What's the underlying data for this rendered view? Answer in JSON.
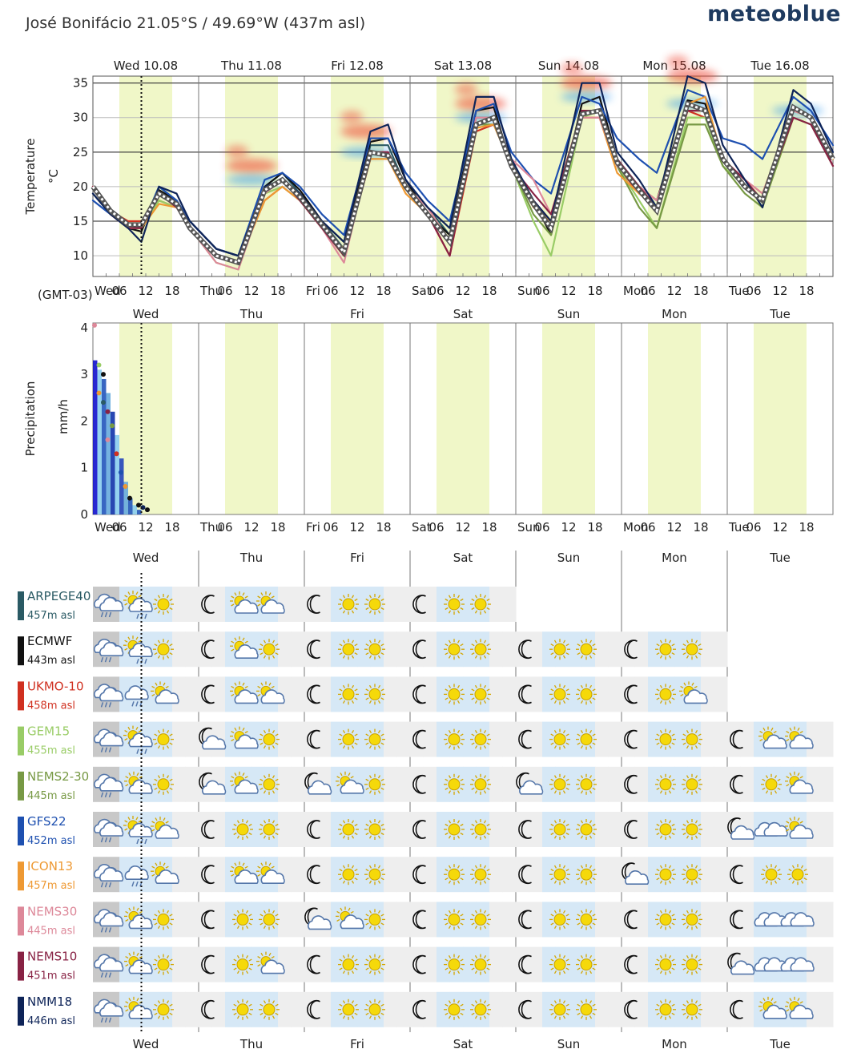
{
  "header": {
    "title": "José Bonifácio  21.05°S / 49.69°W (437m asl)",
    "brand": "meteoblue"
  },
  "timezone_label": "(GMT-03)",
  "days": [
    {
      "short": "Wed",
      "long": "Wed 10.08"
    },
    {
      "short": "Thu",
      "long": "Thu 11.08"
    },
    {
      "short": "Fri",
      "long": "Fri 12.08"
    },
    {
      "short": "Sat",
      "long": "Sat 13.08"
    },
    {
      "short": "Sun",
      "long": "Sun 14.08"
    },
    {
      "short": "Mon",
      "long": "Mon 15.08"
    },
    {
      "short": "Tue",
      "long": "Tue 16.08"
    }
  ],
  "hour_ticks": [
    "06",
    "12",
    "18"
  ],
  "colors": {
    "daytime_band": "#f0f7c8",
    "grid": "#bbbbbb",
    "hot_blob": "#ee4433",
    "cold_blob": "#3399ee",
    "icon_sun": "#f5d90a",
    "icon_cloud": "#5577aa",
    "row_day": "#d6e8f6",
    "row_night": "#eeeeee"
  },
  "chart_data": [
    {
      "type": "line",
      "title": "",
      "ylabel": "Temperature",
      "yunit": "°C",
      "yticks": [
        10,
        15,
        20,
        25,
        30,
        35
      ],
      "ylim": [
        7,
        36
      ],
      "xlim_hours": [
        0,
        168
      ],
      "current_time_hour": 11,
      "ensemble_mean": {
        "hours": [
          0,
          4,
          8,
          11,
          15,
          19,
          22,
          28,
          33,
          39,
          43,
          47,
          52,
          57,
          63,
          67,
          71,
          76,
          81,
          87,
          91,
          95,
          100,
          104,
          111,
          115,
          119,
          124,
          128,
          135,
          139,
          143,
          148,
          152,
          159,
          163,
          168
        ],
        "values": [
          20,
          16.5,
          14.5,
          14.5,
          19,
          17.5,
          14,
          10,
          9,
          19.5,
          21,
          18.5,
          14.5,
          10.5,
          25,
          24.5,
          20,
          16,
          12,
          29,
          30,
          23,
          17.5,
          14,
          30.5,
          31,
          23.5,
          19.5,
          16.5,
          32,
          31,
          24,
          20,
          18,
          31.5,
          30,
          24
        ]
      },
      "series": [
        {
          "name": "ARPEGE40",
          "color": "#2a5a64",
          "values": [
            20,
            16,
            14.5,
            14,
            20,
            18,
            15,
            11,
            10,
            20,
            22,
            19,
            15,
            11,
            26,
            26,
            20,
            17,
            13,
            30,
            30,
            24,
            18,
            15,
            31,
            31,
            24
          ]
        },
        {
          "name": "ECMWF",
          "color": "#111111",
          "values": [
            19,
            16,
            14,
            13.5,
            19.5,
            18,
            15,
            11,
            10,
            20,
            22,
            19.5,
            15,
            12,
            26.5,
            27,
            21,
            16,
            13,
            31,
            31.5,
            23,
            18,
            13,
            32,
            33,
            24,
            20,
            18,
            32.5,
            32,
            24,
            20,
            18
          ]
        },
        {
          "name": "UKMO-10",
          "color": "#d03020",
          "values": [
            20,
            16.5,
            15,
            15,
            18,
            17,
            14,
            10,
            9,
            18,
            20,
            18,
            14,
            10,
            24,
            24,
            20,
            16,
            10,
            28,
            29,
            23,
            18,
            15,
            30,
            30,
            23,
            19,
            17,
            31,
            30,
            24,
            21
          ]
        },
        {
          "name": "GEM15",
          "color": "#99cc66",
          "values": [
            20,
            16,
            14,
            14,
            18,
            17,
            14,
            9,
            8,
            19,
            20,
            18,
            14,
            11,
            24,
            24,
            20,
            17,
            12,
            29,
            30,
            23,
            15,
            10,
            30,
            31,
            23,
            18,
            14,
            30,
            30,
            23,
            20,
            18,
            30,
            29,
            24
          ]
        },
        {
          "name": "NEMS2-30",
          "color": "#779944",
          "values": [
            20,
            16,
            14,
            14,
            19,
            17.5,
            14,
            10,
            9,
            19,
            21,
            18,
            14,
            10,
            25,
            25,
            20,
            16,
            12,
            29,
            29,
            23,
            16,
            13,
            30,
            30,
            23,
            17,
            14,
            29,
            29,
            23,
            19,
            17,
            30,
            29,
            23
          ]
        },
        {
          "name": "GFS22",
          "color": "#1e50b0",
          "values": [
            18,
            16,
            14,
            14,
            20,
            18,
            15,
            11,
            10,
            21,
            22,
            20,
            16,
            13,
            27,
            27,
            22,
            18,
            15,
            31,
            32,
            25,
            21,
            19,
            33,
            32,
            27,
            24,
            22,
            34,
            33,
            27,
            26,
            24,
            33,
            31,
            26
          ]
        },
        {
          "name": "ICON13",
          "color": "#ee9933",
          "values": [
            20,
            16,
            14,
            14,
            17.5,
            17,
            14,
            10,
            9,
            18,
            20,
            18,
            14,
            11,
            24,
            24,
            19,
            16,
            12,
            28.5,
            29,
            23,
            17,
            15,
            30,
            30,
            22,
            19,
            17,
            32,
            33,
            24,
            21,
            19,
            31,
            30,
            24
          ]
        },
        {
          "name": "NEMS30",
          "color": "#dd8899",
          "values": [
            20,
            16,
            14,
            14,
            19,
            17,
            14,
            9,
            8,
            19,
            21,
            18,
            14,
            9,
            25,
            25,
            20,
            17,
            12,
            30,
            30,
            24,
            21,
            16,
            30,
            30,
            23,
            20,
            18,
            31,
            31,
            24,
            21,
            19,
            31,
            30,
            23
          ]
        },
        {
          "name": "NEMS10",
          "color": "#882244",
          "values": [
            20,
            16,
            14,
            14,
            19,
            17,
            14,
            10,
            9,
            19.5,
            21,
            18,
            14,
            10,
            25,
            25,
            20,
            16,
            10,
            29,
            30,
            23,
            19,
            16,
            31,
            31,
            24,
            20,
            17,
            31,
            31,
            24,
            21,
            18,
            30,
            29,
            23
          ]
        },
        {
          "name": "NMM18",
          "color": "#0e2458",
          "values": [
            19,
            16,
            14,
            12,
            20,
            19,
            15,
            11,
            10,
            20,
            21,
            19,
            15,
            12,
            28,
            29,
            21,
            17,
            14,
            33,
            33,
            24,
            18,
            15,
            35,
            35,
            25,
            21,
            17,
            36,
            35,
            26,
            21,
            17,
            34,
            32,
            25
          ]
        }
      ]
    },
    {
      "type": "bar",
      "title": "",
      "ylabel": "Precipitation",
      "yunit": "mm/h",
      "yticks": [
        0,
        1,
        2,
        3,
        4
      ],
      "ylim": [
        0,
        4.1
      ],
      "xlim_hours": [
        0,
        168
      ],
      "bars": [
        {
          "hour": 0,
          "value": 3.3,
          "color": "#1111cc"
        },
        {
          "hour": 1,
          "value": 3.1,
          "color": "#88ccee"
        },
        {
          "hour": 2,
          "value": 2.9,
          "color": "#2255bb"
        },
        {
          "hour": 3,
          "value": 2.6,
          "color": "#66aadd"
        },
        {
          "hour": 4,
          "value": 2.2,
          "color": "#1133aa"
        },
        {
          "hour": 5,
          "value": 1.7,
          "color": "#88ccee"
        },
        {
          "hour": 6,
          "value": 1.2,
          "color": "#2244bb"
        },
        {
          "hour": 7,
          "value": 0.7,
          "color": "#66aadd"
        },
        {
          "hour": 8,
          "value": 0.35,
          "color": "#2255bb"
        },
        {
          "hour": 9,
          "value": 0.2,
          "color": "#88ccee"
        },
        {
          "hour": 10,
          "value": 0.1,
          "color": "#2255bb"
        }
      ],
      "points": [
        {
          "hour": 0,
          "value": 4.05,
          "color": "#dd8899"
        },
        {
          "hour": 1,
          "value": 3.2,
          "color": "#99cc66"
        },
        {
          "hour": 2,
          "value": 3.0,
          "color": "#111111"
        },
        {
          "hour": 1,
          "value": 2.6,
          "color": "#ee9933"
        },
        {
          "hour": 2,
          "value": 2.4,
          "color": "#2a5a64"
        },
        {
          "hour": 3,
          "value": 2.2,
          "color": "#882244"
        },
        {
          "hour": 3,
          "value": 1.6,
          "color": "#dd8899"
        },
        {
          "hour": 4,
          "value": 1.9,
          "color": "#779944"
        },
        {
          "hour": 5,
          "value": 1.3,
          "color": "#d03020"
        },
        {
          "hour": 6,
          "value": 0.9,
          "color": "#1e50b0"
        },
        {
          "hour": 7,
          "value": 0.6,
          "color": "#ee9933"
        },
        {
          "hour": 8,
          "value": 0.35,
          "color": "#111111"
        },
        {
          "hour": 10,
          "value": 0.2,
          "color": "#111111"
        },
        {
          "hour": 11,
          "value": 0.15,
          "color": "#0e2458"
        },
        {
          "hour": 12,
          "value": 0.1,
          "color": "#111111"
        }
      ]
    }
  ],
  "models": [
    {
      "name": "ARPEGE40",
      "elev": "457m asl",
      "color": "#2a5a64",
      "end_hour": 96,
      "icons": [
        "storm",
        "suncloudrain",
        "sun",
        "moon",
        "suncloud",
        "suncloud",
        "moon",
        "sun",
        "sun",
        "moon",
        "sun",
        "sun"
      ]
    },
    {
      "name": "ECMWF",
      "elev": "443m asl",
      "color": "#111111",
      "end_hour": 144,
      "icons": [
        "storm",
        "suncloudrain",
        "sun",
        "moon",
        "suncloud",
        "sun",
        "moon",
        "sun",
        "sun",
        "moon",
        "sun",
        "sun",
        "moon",
        "sun",
        "sun",
        "moon",
        "sun",
        "sun"
      ]
    },
    {
      "name": "UKMO-10",
      "elev": "458m asl",
      "color": "#d03020",
      "end_hour": 144,
      "icons": [
        "storm",
        "cloudrain",
        "suncloud",
        "moon",
        "suncloud",
        "suncloud",
        "moon",
        "sun",
        "sun",
        "moon",
        "sun",
        "sun",
        "moon",
        "sun",
        "sun",
        "moon",
        "sun",
        "suncloud"
      ]
    },
    {
      "name": "GEM15",
      "elev": "455m asl",
      "color": "#99cc66",
      "end_hour": 168,
      "icons": [
        "storm",
        "suncloudrain",
        "sun",
        "mooncloud",
        "suncloud",
        "sun",
        "moon",
        "sun",
        "sun",
        "moon",
        "sun",
        "sun",
        "moon",
        "sun",
        "sun",
        "moon",
        "sun",
        "sun",
        "moon",
        "suncloud",
        "suncloud"
      ]
    },
    {
      "name": "NEMS2-30",
      "elev": "445m asl",
      "color": "#779944",
      "end_hour": 168,
      "icons": [
        "storm",
        "suncloud",
        "sun",
        "mooncloud",
        "suncloud",
        "sun",
        "mooncloud",
        "suncloud",
        "sun",
        "moon",
        "sun",
        "sun",
        "mooncloud",
        "sun",
        "sun",
        "moon",
        "sun",
        "sun",
        "moon",
        "sun",
        "suncloud"
      ]
    },
    {
      "name": "GFS22",
      "elev": "452m asl",
      "color": "#1e50b0",
      "end_hour": 168,
      "icons": [
        "storm",
        "suncloudrain",
        "suncloud",
        "moon",
        "sun",
        "sun",
        "moon",
        "sun",
        "sun",
        "moon",
        "sun",
        "sun",
        "moon",
        "sun",
        "sun",
        "moon",
        "sun",
        "sun",
        "mooncloud",
        "cloud",
        "suncloud"
      ]
    },
    {
      "name": "ICON13",
      "elev": "457m asl",
      "color": "#ee9933",
      "end_hour": 168,
      "icons": [
        "storm",
        "cloudrain",
        "suncloud",
        "moon",
        "suncloud",
        "suncloud",
        "moon",
        "sun",
        "sun",
        "moon",
        "sun",
        "sun",
        "moon",
        "sun",
        "sun",
        "mooncloud",
        "sun",
        "sun",
        "moon",
        "sun",
        "sun"
      ]
    },
    {
      "name": "NEMS30",
      "elev": "445m asl",
      "color": "#dd8899",
      "end_hour": 168,
      "icons": [
        "storm",
        "suncloud",
        "sun",
        "moon",
        "sun",
        "sun",
        "mooncloud",
        "suncloud",
        "sun",
        "moon",
        "sun",
        "sun",
        "moon",
        "sun",
        "sun",
        "moon",
        "sun",
        "sun",
        "moon",
        "cloud",
        "cloud"
      ]
    },
    {
      "name": "NEMS10",
      "elev": "451m asl",
      "color": "#882244",
      "end_hour": 168,
      "icons": [
        "storm",
        "suncloud",
        "sun",
        "moon",
        "sun",
        "suncloud",
        "moon",
        "sun",
        "sun",
        "moon",
        "sun",
        "sun",
        "moon",
        "sun",
        "sun",
        "moon",
        "sun",
        "sun",
        "mooncloud",
        "cloud",
        "cloud"
      ]
    },
    {
      "name": "NMM18",
      "elev": "446m asl",
      "color": "#0e2458",
      "end_hour": 168,
      "icons": [
        "storm",
        "suncloud",
        "sun",
        "moon",
        "sun",
        "sun",
        "moon",
        "sun",
        "sun",
        "moon",
        "sun",
        "sun",
        "moon",
        "sun",
        "sun",
        "moon",
        "sun",
        "sun",
        "moon",
        "suncloud",
        "suncloud"
      ]
    }
  ]
}
